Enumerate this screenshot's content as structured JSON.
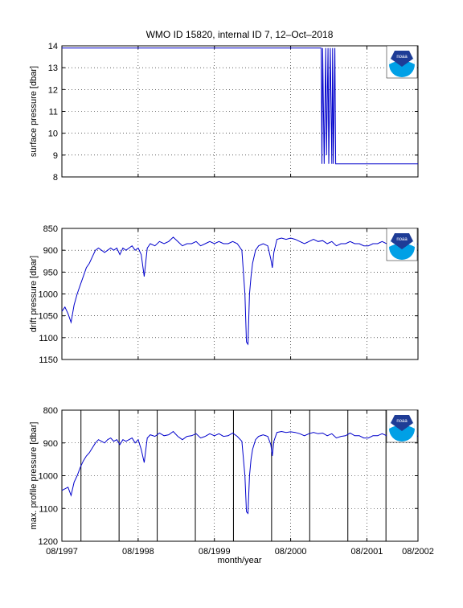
{
  "colors": {
    "series": "#0000cc",
    "axis": "#000000",
    "grid": "#000000",
    "noaa_blue": "#1e3c96",
    "noaa_light": "#00a0e6"
  },
  "title": "WMO ID 15820, internal ID 7, 12–Oct–2018",
  "xlabel": "month/year",
  "logo_text": "noaa",
  "chart_data": [
    {
      "type": "line",
      "panel": "surface",
      "ylabel": "surface pressure [dbar]",
      "ylim": [
        8,
        14
      ],
      "yticks": [
        "14",
        "13",
        "12",
        "11",
        "10",
        "9",
        "8"
      ],
      "yticks_values": [
        14,
        13,
        12,
        11,
        10,
        9,
        8
      ],
      "y_reversed": false,
      "grid": "dotted",
      "series": [
        {
          "x": [
            1997.58,
            2000.98,
            2000.99,
            2001.0,
            2001.02,
            2001.04,
            2001.05,
            2001.07,
            2001.08,
            2001.1,
            2001.12,
            2001.13,
            2001.14,
            2001.16,
            2001.17,
            2002.25
          ],
          "values": [
            13.9,
            13.9,
            8.6,
            13.9,
            8.6,
            13.9,
            9.0,
            13.9,
            8.6,
            13.9,
            8.6,
            13.9,
            8.6,
            13.9,
            8.6,
            8.6
          ]
        }
      ]
    },
    {
      "type": "line",
      "panel": "drift",
      "ylabel": "drift pressure [dbar]",
      "ylim": [
        850,
        1150
      ],
      "yticks": [
        "850",
        "900",
        "950",
        "1000",
        "1050",
        "1100",
        "1150"
      ],
      "yticks_values": [
        850,
        900,
        950,
        1000,
        1050,
        1100,
        1150
      ],
      "y_reversed": true,
      "grid": "dotted",
      "series": [
        {
          "x": [
            1997.58,
            1997.62,
            1997.66,
            1997.7,
            1997.74,
            1997.78,
            1997.82,
            1997.86,
            1997.9,
            1997.94,
            1997.98,
            1998.02,
            1998.06,
            1998.1,
            1998.14,
            1998.18,
            1998.22,
            1998.26,
            1998.3,
            1998.34,
            1998.38,
            1998.42,
            1998.46,
            1998.5,
            1998.54,
            1998.58,
            1998.62,
            1998.66,
            1998.7,
            1998.74,
            1998.8,
            1998.86,
            1998.92,
            1998.98,
            1999.04,
            1999.1,
            1999.16,
            1999.22,
            1999.28,
            1999.34,
            1999.4,
            1999.46,
            1999.52,
            1999.58,
            1999.64,
            1999.7,
            1999.76,
            1999.82,
            1999.88,
            1999.94,
            1999.98,
            2000.0,
            2000.02,
            2000.04,
            2000.06,
            2000.08,
            2000.12,
            2000.16,
            2000.22,
            2000.28,
            2000.32,
            2000.34,
            2000.36,
            2000.4,
            2000.46,
            2000.52,
            2000.58,
            2000.64,
            2000.7,
            2000.76,
            2000.82,
            2000.88,
            2000.94,
            2001.0,
            2001.06,
            2001.12,
            2001.18,
            2001.24,
            2001.3,
            2001.36,
            2001.42,
            2001.48,
            2001.54,
            2001.6,
            2001.66,
            2001.72,
            2001.78,
            2001.84,
            2001.9,
            2001.96,
            2002.02,
            2002.08,
            2002.14,
            2002.2,
            2002.25
          ],
          "values": [
            1040,
            1030,
            1045,
            1065,
            1025,
            1000,
            980,
            960,
            940,
            930,
            915,
            900,
            895,
            900,
            905,
            900,
            895,
            900,
            895,
            910,
            895,
            900,
            895,
            890,
            900,
            895,
            910,
            960,
            895,
            885,
            890,
            880,
            885,
            880,
            870,
            880,
            890,
            885,
            885,
            880,
            890,
            885,
            880,
            885,
            880,
            885,
            885,
            880,
            885,
            900,
            1000,
            1110,
            1115,
            1000,
            960,
            930,
            900,
            890,
            885,
            890,
            920,
            940,
            905,
            875,
            872,
            875,
            872,
            875,
            880,
            885,
            880,
            875,
            880,
            878,
            885,
            880,
            890,
            885,
            885,
            880,
            885,
            885,
            890,
            890,
            885,
            885,
            880,
            885,
            895,
            890,
            885,
            880,
            885,
            890,
            885
          ]
        }
      ]
    },
    {
      "type": "line",
      "panel": "profile",
      "ylabel": "max. profile pressure [dbar]",
      "ylim": [
        800,
        1200
      ],
      "yticks": [
        "800",
        "900",
        "1000",
        "1100",
        "1200"
      ],
      "yticks_values": [
        800,
        900,
        1000,
        1100,
        1200
      ],
      "y_reversed": true,
      "grid": "dotted",
      "year_lines_x": [
        1997.83,
        1998.33,
        1998.83,
        1999.33,
        1999.83,
        2000.33,
        2000.83,
        2001.33,
        2001.83
      ],
      "series": [
        {
          "x": [
            1997.58,
            1997.62,
            1997.66,
            1997.7,
            1997.74,
            1997.78,
            1997.82,
            1997.86,
            1997.9,
            1997.94,
            1997.98,
            1998.02,
            1998.06,
            1998.1,
            1998.14,
            1998.18,
            1998.22,
            1998.26,
            1998.3,
            1998.34,
            1998.38,
            1998.42,
            1998.46,
            1998.5,
            1998.54,
            1998.58,
            1998.62,
            1998.66,
            1998.7,
            1998.74,
            1998.8,
            1998.86,
            1998.92,
            1998.98,
            1999.04,
            1999.1,
            1999.16,
            1999.22,
            1999.28,
            1999.34,
            1999.4,
            1999.46,
            1999.52,
            1999.58,
            1999.64,
            1999.7,
            1999.76,
            1999.82,
            1999.88,
            1999.94,
            1999.98,
            2000.0,
            2000.02,
            2000.04,
            2000.06,
            2000.08,
            2000.12,
            2000.16,
            2000.22,
            2000.28,
            2000.32,
            2000.34,
            2000.36,
            2000.4,
            2000.46,
            2000.52,
            2000.58,
            2000.64,
            2000.7,
            2000.76,
            2000.82,
            2000.88,
            2000.94,
            2001.0,
            2001.06,
            2001.12,
            2001.18,
            2001.24,
            2001.3,
            2001.36,
            2001.42,
            2001.48,
            2001.54,
            2001.6,
            2001.66,
            2001.72,
            2001.78,
            2001.84,
            2001.9,
            2001.96,
            2002.02,
            2002.08,
            2002.14,
            2002.2,
            2002.25
          ],
          "values": [
            1045,
            1040,
            1035,
            1060,
            1020,
            1000,
            975,
            955,
            940,
            930,
            915,
            900,
            890,
            895,
            900,
            890,
            885,
            895,
            890,
            905,
            890,
            895,
            890,
            885,
            900,
            890,
            920,
            960,
            885,
            875,
            880,
            870,
            878,
            875,
            865,
            880,
            890,
            880,
            878,
            872,
            885,
            880,
            872,
            878,
            872,
            880,
            878,
            870,
            880,
            895,
            1000,
            1110,
            1115,
            1000,
            950,
            920,
            890,
            880,
            875,
            880,
            905,
            940,
            895,
            868,
            865,
            868,
            866,
            868,
            872,
            878,
            872,
            868,
            872,
            870,
            878,
            872,
            885,
            880,
            878,
            870,
            878,
            878,
            885,
            885,
            878,
            878,
            872,
            878,
            888,
            885,
            878,
            872,
            878,
            885,
            878
          ]
        }
      ]
    }
  ],
  "xticks": [
    "08/1997",
    "08/1998",
    "08/1999",
    "08/2000",
    "08/2001",
    "08/2002"
  ],
  "xticks_values": [
    1997.58,
    1998.58,
    1999.58,
    2000.58,
    2001.58,
    2002.58
  ]
}
